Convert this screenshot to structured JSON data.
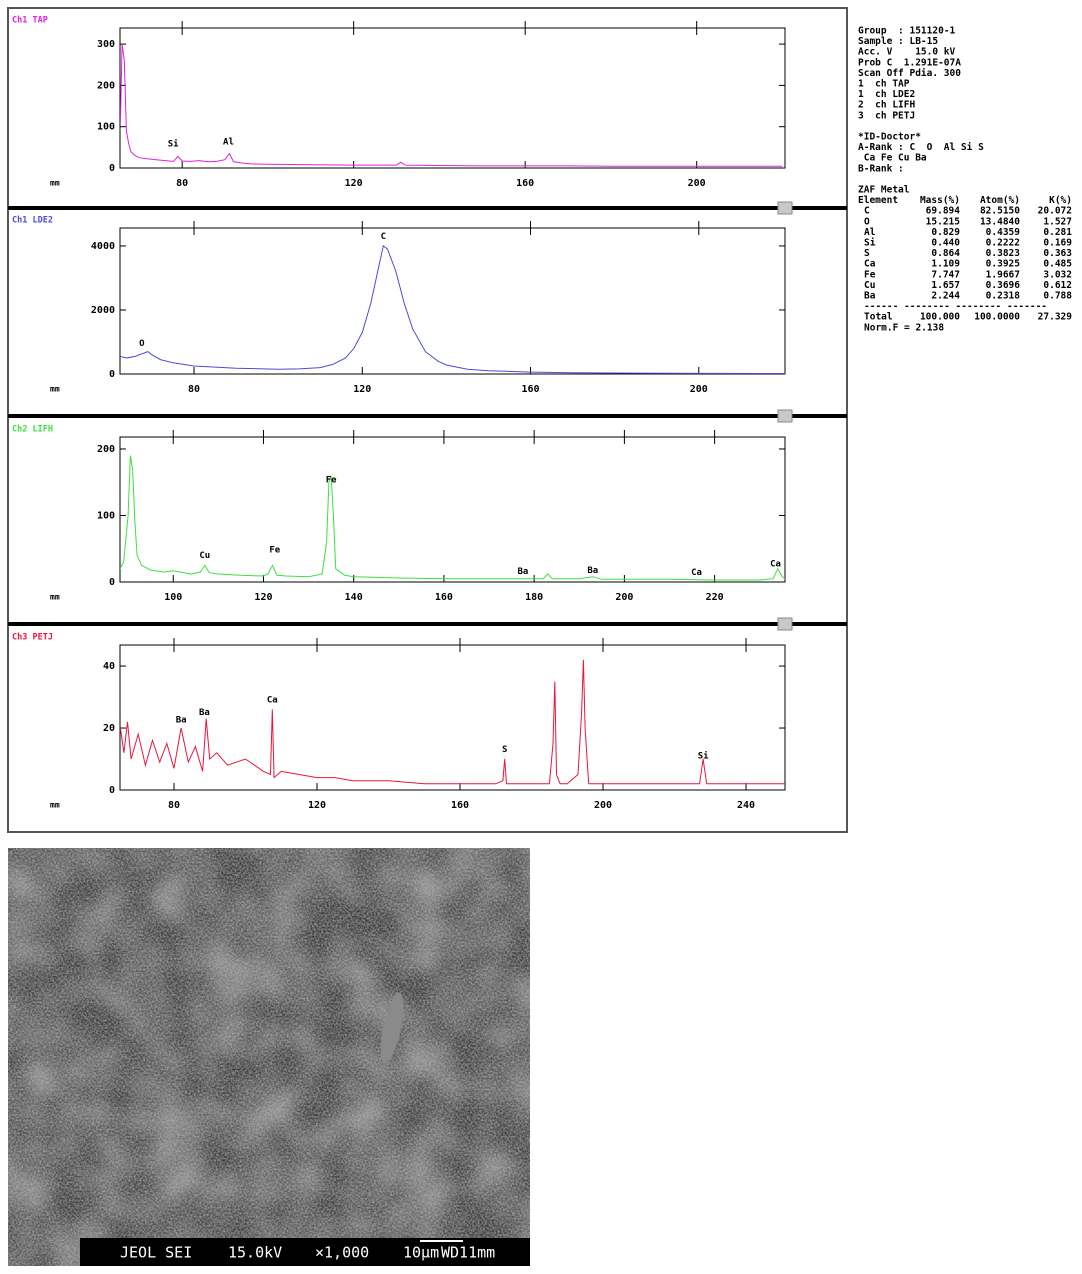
{
  "chart_data": [
    {
      "type": "line",
      "title": "Ch1 TAP",
      "x_label": "mm",
      "color": "#e020e0",
      "x": [
        65.6,
        66,
        66.5,
        67,
        67.5,
        68,
        69,
        70,
        72,
        74,
        76,
        78,
        79,
        80,
        82,
        84,
        86,
        88,
        90,
        91,
        92,
        94,
        96,
        100,
        110,
        120,
        130,
        131,
        132,
        140,
        150,
        160,
        170,
        180,
        190,
        200,
        210,
        220
      ],
      "values": [
        110,
        300,
        260,
        90,
        60,
        40,
        30,
        25,
        22,
        20,
        18,
        16,
        28,
        17,
        16,
        18,
        15,
        16,
        20,
        35,
        15,
        12,
        10,
        9,
        8,
        7,
        7,
        14,
        7,
        6,
        5,
        5,
        5,
        4,
        4,
        4,
        4,
        4
      ],
      "xlim": [
        65.5,
        220.6
      ],
      "xticks": [
        80,
        120,
        160,
        200
      ],
      "ylim": [
        0,
        339
      ],
      "yticks": [
        0,
        100,
        200,
        300
      ],
      "annotations": [
        {
          "text": "Si",
          "x": 77.9,
          "y": 58
        },
        {
          "text": "Al",
          "x": 90.8,
          "y": 63
        }
      ]
    },
    {
      "type": "line",
      "title": "Ch1 LDE2",
      "x_label": "mm",
      "color": "#4a4adc",
      "x": [
        62.4,
        64,
        66,
        68,
        69,
        70,
        72,
        75,
        80,
        90,
        100,
        105,
        110,
        113,
        116,
        118,
        120,
        122,
        124,
        125,
        126,
        128,
        130,
        132,
        135,
        138,
        140,
        145,
        150,
        160,
        170,
        180,
        200,
        220.5
      ],
      "values": [
        550,
        500,
        550,
        650,
        700,
        600,
        450,
        350,
        250,
        180,
        150,
        160,
        200,
        300,
        500,
        800,
        1300,
        2200,
        3400,
        4000,
        3900,
        3200,
        2200,
        1400,
        700,
        400,
        280,
        150,
        100,
        60,
        40,
        30,
        20,
        15
      ],
      "xlim": [
        62.4,
        220.5
      ],
      "xticks": [
        80,
        120,
        160,
        200
      ],
      "ylim": [
        0,
        4560
      ],
      "yticks": [
        0,
        2000,
        4000
      ],
      "annotations": [
        {
          "text": "O",
          "x": 67.6,
          "y": 950
        },
        {
          "text": "C",
          "x": 125,
          "y": 4300
        }
      ]
    },
    {
      "type": "line",
      "title": "Ch2 LIFH",
      "x_label": "mm",
      "color": "#3ee03e",
      "x": [
        88.2,
        89,
        90,
        90.5,
        91,
        91.5,
        92,
        93,
        95,
        98,
        100,
        104,
        106,
        107,
        108,
        110,
        115,
        120,
        121,
        122,
        123,
        125,
        130,
        133,
        134,
        134.5,
        135,
        135.5,
        136,
        138,
        140,
        150,
        160,
        170,
        180,
        182,
        183,
        184,
        190,
        193,
        195,
        200,
        210,
        220,
        230,
        233,
        234,
        235,
        235.6
      ],
      "values": [
        20,
        30,
        100,
        190,
        170,
        90,
        40,
        25,
        18,
        15,
        17,
        12,
        15,
        25,
        14,
        12,
        10,
        9,
        12,
        25,
        10,
        9,
        8,
        12,
        60,
        150,
        160,
        100,
        20,
        10,
        8,
        6,
        5,
        5,
        5,
        5,
        12,
        5,
        5,
        8,
        4,
        4,
        4,
        3,
        3,
        5,
        20,
        8,
        5
      ],
      "xlim": [
        88.2,
        235.6
      ],
      "xticks": [
        100,
        120,
        140,
        160,
        180,
        200,
        220
      ],
      "ylim": [
        0,
        218
      ],
      "yticks": [
        0,
        100,
        200
      ],
      "annotations": [
        {
          "text": "Cu",
          "x": 107,
          "y": 40
        },
        {
          "text": "Fe",
          "x": 122.5,
          "y": 48
        },
        {
          "text": "Fe",
          "x": 135,
          "y": 153
        },
        {
          "text": "Ba",
          "x": 177.5,
          "y": 16
        },
        {
          "text": "Ba",
          "x": 193,
          "y": 17
        },
        {
          "text": "Ca",
          "x": 216,
          "y": 14
        },
        {
          "text": "Ca",
          "x": 233.5,
          "y": 27
        }
      ]
    },
    {
      "type": "line",
      "title": "Ch3 PETJ",
      "x_label": "mm",
      "color": "#e8163c",
      "x": [
        65,
        66,
        67,
        68,
        70,
        72,
        74,
        76,
        78,
        80,
        82,
        84,
        86,
        88,
        89,
        90,
        92,
        95,
        100,
        105,
        107,
        107.5,
        108,
        110,
        115,
        120,
        125,
        130,
        140,
        150,
        160,
        170,
        172,
        172.5,
        173,
        175,
        180,
        185,
        186,
        186.5,
        187,
        188,
        190,
        193,
        194,
        194.5,
        195,
        196,
        200,
        210,
        220,
        227,
        228,
        229,
        235,
        240,
        245,
        250.9
      ],
      "values": [
        20,
        12,
        22,
        10,
        18,
        8,
        16,
        9,
        15,
        7,
        20,
        9,
        14,
        6,
        23,
        10,
        12,
        8,
        10,
        6,
        5,
        26,
        4,
        6,
        5,
        4,
        4,
        3,
        3,
        2,
        2,
        2,
        3,
        10,
        2,
        2,
        2,
        2,
        15,
        35,
        5,
        2,
        2,
        5,
        25,
        42,
        20,
        2,
        2,
        2,
        2,
        2,
        10,
        2,
        2,
        2,
        2,
        2
      ],
      "xlim": [
        64.9,
        250.9
      ],
      "xticks": [
        80,
        120,
        160,
        200,
        240
      ],
      "ylim": [
        0,
        46.8
      ],
      "yticks": [
        0,
        20,
        40
      ],
      "annotations": [
        {
          "text": "Ba",
          "x": 82,
          "y": 22.6
        },
        {
          "text": "Ba",
          "x": 88.5,
          "y": 25
        },
        {
          "text": "Ca",
          "x": 107.5,
          "y": 29
        },
        {
          "text": "S",
          "x": 172.5,
          "y": 13
        },
        {
          "text": "Si",
          "x": 228,
          "y": 11
        }
      ]
    }
  ],
  "side_panel": {
    "lines": [
      "Group  : 151120-1",
      "Sample : LB-15",
      "Acc. V    15.0 kV",
      "Prob C  1.291E-07A",
      "Scan Off Pdia. 300",
      "1  ch TAP",
      "1  ch LDE2",
      "2  ch LIFH",
      "3  ch PETJ"
    ],
    "id_doctor": [
      "*ID-Doctor*",
      "A-Rank : C  O  Al Si S",
      " Ca Fe Cu Ba",
      "B-Rank :"
    ],
    "zaf": {
      "title": "ZAF Metal",
      "header": [
        "Element",
        "Mass(%)",
        "Atom(%)",
        "K(%)"
      ],
      "rows": [
        [
          "C",
          "69.894",
          "82.5150",
          "20.072"
        ],
        [
          "O",
          "15.215",
          "13.4840",
          "1.527"
        ],
        [
          "Al",
          "0.829",
          "0.4359",
          "0.281"
        ],
        [
          "Si",
          "0.440",
          "0.2222",
          "0.169"
        ],
        [
          "S",
          "0.864",
          "0.3823",
          "0.363"
        ],
        [
          "Ca",
          "1.109",
          "0.3925",
          "0.485"
        ],
        [
          "Fe",
          "7.747",
          "1.9667",
          "3.032"
        ],
        [
          "Cu",
          "1.657",
          "0.3696",
          "0.612"
        ],
        [
          "Ba",
          "2.244",
          "0.2318",
          "0.788"
        ]
      ],
      "separator": "------ -------- -------- -------",
      "total": [
        "Total",
        "100.000",
        "100.0000",
        "27.329"
      ],
      "norm": "Norm.F = 2.138"
    }
  },
  "sem_image": {
    "caption": [
      "JEOL SEI",
      "15.0kV",
      "×1,000",
      "10μm",
      "WD11mm"
    ]
  }
}
